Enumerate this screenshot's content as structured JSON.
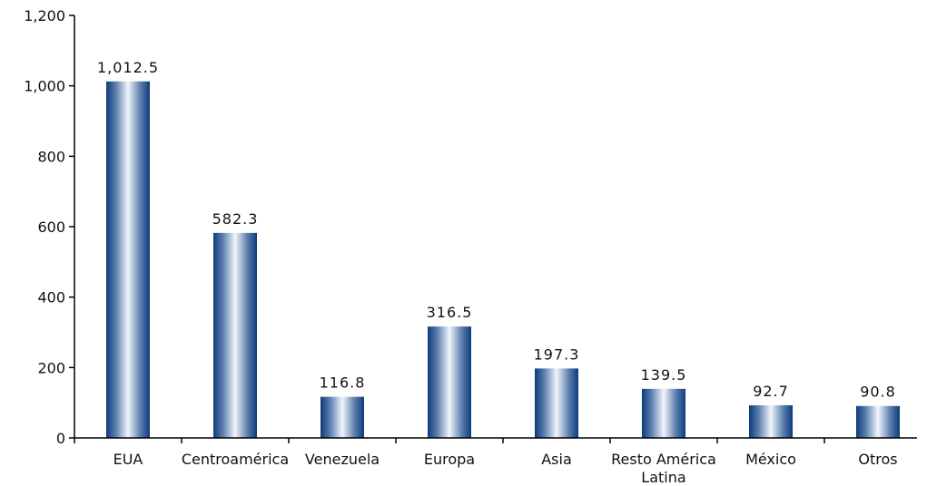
{
  "chart_data": {
    "type": "bar",
    "title": "",
    "xlabel": "",
    "ylabel": "",
    "ylim": [
      0,
      1200
    ],
    "yticks": [
      0,
      200,
      400,
      600,
      800,
      1000,
      1200
    ],
    "ytick_labels": [
      "0",
      "200",
      "400",
      "600",
      "800",
      "1,000",
      "1,200"
    ],
    "categories": [
      "EUA",
      "Centroamérica",
      "Venezuela",
      "Europa",
      "Asia",
      "Resto América Latina",
      "México",
      "Otros"
    ],
    "category_lines": [
      [
        "EUA"
      ],
      [
        "Centroamérica"
      ],
      [
        "Venezuela"
      ],
      [
        "Europa"
      ],
      [
        "Asia"
      ],
      [
        "Resto América",
        "Latina"
      ],
      [
        "México"
      ],
      [
        "Otros"
      ]
    ],
    "values": [
      1012.5,
      582.3,
      116.8,
      316.5,
      197.3,
      139.5,
      92.7,
      90.8
    ],
    "data_labels": [
      "1,012.5",
      "582.3",
      "116.8",
      "316.5",
      "197.3",
      "139.5",
      "92.7",
      "90.8"
    ],
    "grid": false,
    "legend": "none",
    "colors": {
      "bar_dark": "#0d3b78",
      "bar_mid": "#5c7fb0",
      "bar_light": "#f2f5fb",
      "axis": "#000000"
    }
  }
}
